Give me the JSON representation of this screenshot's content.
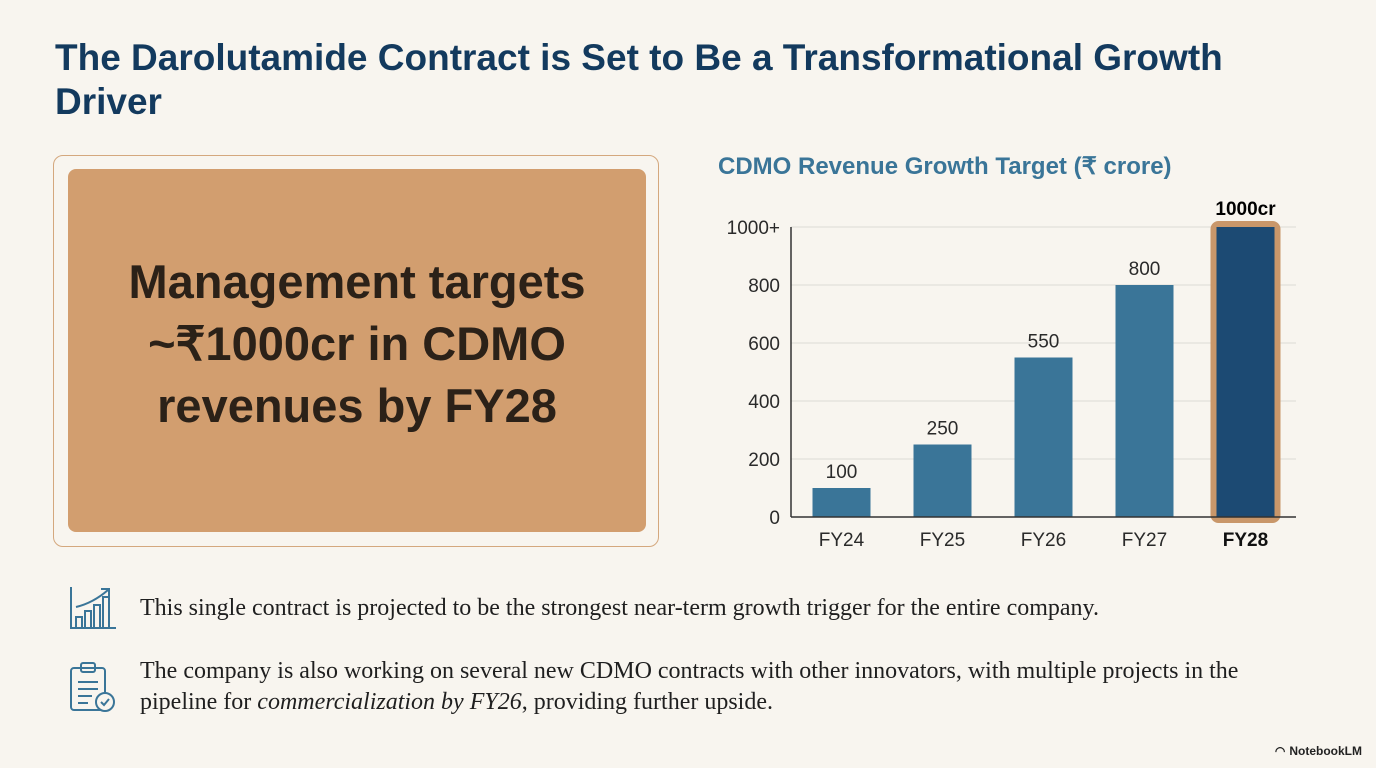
{
  "title": "The Darolutamide Contract is Set to Be a Transformational Growth Driver",
  "callout": {
    "lines": [
      "Management targets",
      "~₹1000cr in CDMO",
      "revenues by FY28"
    ]
  },
  "chart_data": {
    "type": "bar",
    "title": "CDMO Revenue Growth Target (₹ crore)",
    "categories": [
      "FY24",
      "FY25",
      "FY26",
      "FY27",
      "FY28"
    ],
    "values": [
      100,
      250,
      550,
      800,
      1000
    ],
    "data_labels": [
      "100",
      "250",
      "550",
      "800",
      "1000cr"
    ],
    "highlight": "FY28",
    "ylim": [
      0,
      1000
    ],
    "yticks": [
      0,
      200,
      400,
      600,
      800,
      1000
    ],
    "ytick_labels": [
      "0",
      "200",
      "400",
      "600",
      "800",
      "1000+"
    ],
    "grid": true,
    "colors": {
      "bar": "#3a7598",
      "highlight": "#1c4a73",
      "highlight_border": "#c9976a"
    }
  },
  "bullets": [
    {
      "icon": "growth-chart-icon",
      "text": "This single contract is projected to be the strongest near-term growth trigger for the entire company."
    },
    {
      "icon": "clipboard-check-icon",
      "text_before": "The company is also working on several new CDMO contracts with other innovators, with multiple projects in the pipeline for ",
      "text_italic": "commercialization by FY26",
      "text_after": ", providing further upside."
    }
  ],
  "brand": "NotebookLM"
}
